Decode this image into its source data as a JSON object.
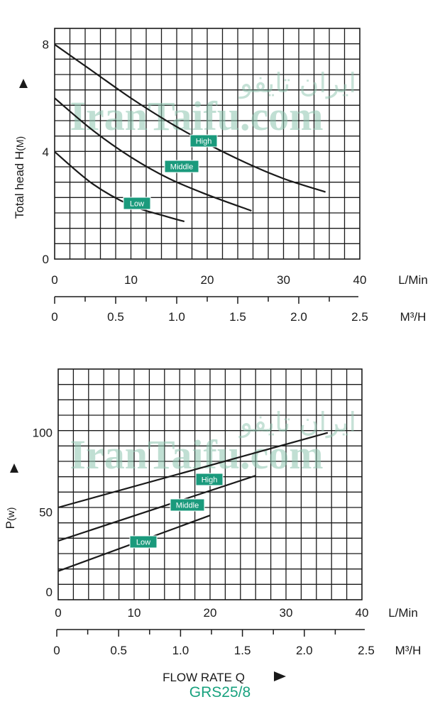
{
  "model": "GRS25/8",
  "watermark": {
    "latin": "IranTaifu.com",
    "arabic": "ایران تایفو"
  },
  "colors": {
    "accent": "#1a9a7c",
    "model_text": "#19a27f",
    "ink": "#1a1a1a"
  },
  "flow_axis_label": "FLOW RATE Q",
  "chart_data": [
    {
      "type": "line",
      "ylabel": "Total head H",
      "ylabel_unit": "(M)",
      "xlabel": "L/Min",
      "x2label": "M³/H",
      "xlim": [
        0,
        40
      ],
      "ylim": [
        0,
        8.6
      ],
      "xticks": [
        0,
        10,
        20,
        30,
        40
      ],
      "x2ticks": [
        "0",
        "0.5",
        "1.0",
        "1.5",
        "2.0",
        "2.5"
      ],
      "yticks": [
        0,
        4,
        8
      ],
      "grid": true,
      "series": [
        {
          "name": "High",
          "x": [
            0,
            5,
            10,
            15,
            20,
            25,
            30,
            35.5
          ],
          "y": [
            8.0,
            7.0,
            6.0,
            5.1,
            4.3,
            3.6,
            3.0,
            2.5
          ]
        },
        {
          "name": "Middle",
          "x": [
            0,
            5,
            10,
            15,
            20,
            25.8
          ],
          "y": [
            6.0,
            4.8,
            3.8,
            3.0,
            2.4,
            1.8
          ]
        },
        {
          "name": "Low",
          "x": [
            0,
            5,
            10,
            14.5,
            17
          ],
          "y": [
            4.0,
            2.8,
            2.0,
            1.6,
            1.4
          ]
        }
      ]
    },
    {
      "type": "line",
      "ylabel": "P",
      "ylabel_unit": "(w)",
      "xlabel": "L/Min",
      "x2label": "M³/H",
      "xlim": [
        0,
        40
      ],
      "ylim": [
        -5,
        140
      ],
      "xticks": [
        0,
        10,
        20,
        30,
        40
      ],
      "x2ticks": [
        "0",
        "0.5",
        "1.0",
        "1.5",
        "2.0",
        "2.5"
      ],
      "yticks": [
        0,
        50,
        100
      ],
      "grid": true,
      "series": [
        {
          "name": "High",
          "x": [
            0,
            35.5
          ],
          "y": [
            53,
            100
          ]
        },
        {
          "name": "Middle",
          "x": [
            0,
            26
          ],
          "y": [
            32,
            73
          ]
        },
        {
          "name": "Low",
          "x": [
            0,
            20
          ],
          "y": [
            13,
            48
          ]
        }
      ]
    }
  ]
}
